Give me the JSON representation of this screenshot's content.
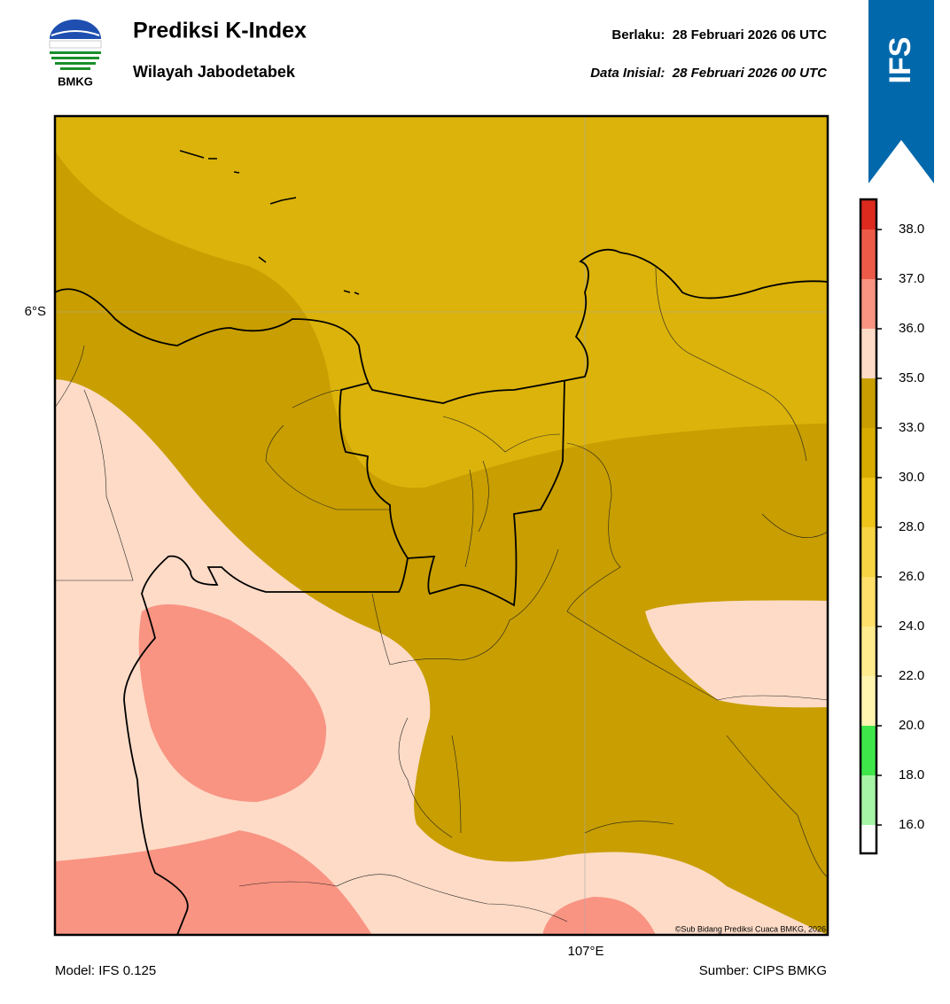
{
  "header": {
    "logo_text": "BMKG",
    "title": "Prediksi K-Index",
    "subtitle": "Wilayah Jabodetabek",
    "valid": "Berlaku:  28 Februari 2026 06 UTC",
    "init": "Data Inisial:  28 Februari 2026 00 UTC",
    "badge": "IFS"
  },
  "map": {
    "lat_label": "6°S",
    "lon_label": "107°E",
    "copyright": "©Sub Bidang Prediksi Cuaca BMKG, 2026"
  },
  "colorbar": {
    "colors": [
      "#ffffff",
      "#a6f5a6",
      "#3ee64a",
      "#fff5b0",
      "#ffec8f",
      "#ffe06a",
      "#f6d443",
      "#efc41a",
      "#d8ac00",
      "#c89e00",
      "#fddbc7",
      "#f99482",
      "#ee5a48",
      "#dc2a1e"
    ],
    "ticks": [
      {
        "value": 16,
        "label": "16.0"
      },
      {
        "value": 18,
        "label": "18.0"
      },
      {
        "value": 20,
        "label": "20.0"
      },
      {
        "value": 22,
        "label": "22.0"
      },
      {
        "value": 24,
        "label": "24.0"
      },
      {
        "value": 26,
        "label": "26.0"
      },
      {
        "value": 28,
        "label": "28.0"
      },
      {
        "value": 30,
        "label": "30.0"
      },
      {
        "value": 33,
        "label": "33.0"
      },
      {
        "value": 35,
        "label": "35.0"
      },
      {
        "value": 36,
        "label": "36.0"
      },
      {
        "value": 37,
        "label": "37.0"
      },
      {
        "value": 38,
        "label": "38.0"
      }
    ]
  },
  "footer": {
    "model": "Model: IFS 0.125",
    "source": "Sumber: CIPS BMKG"
  }
}
